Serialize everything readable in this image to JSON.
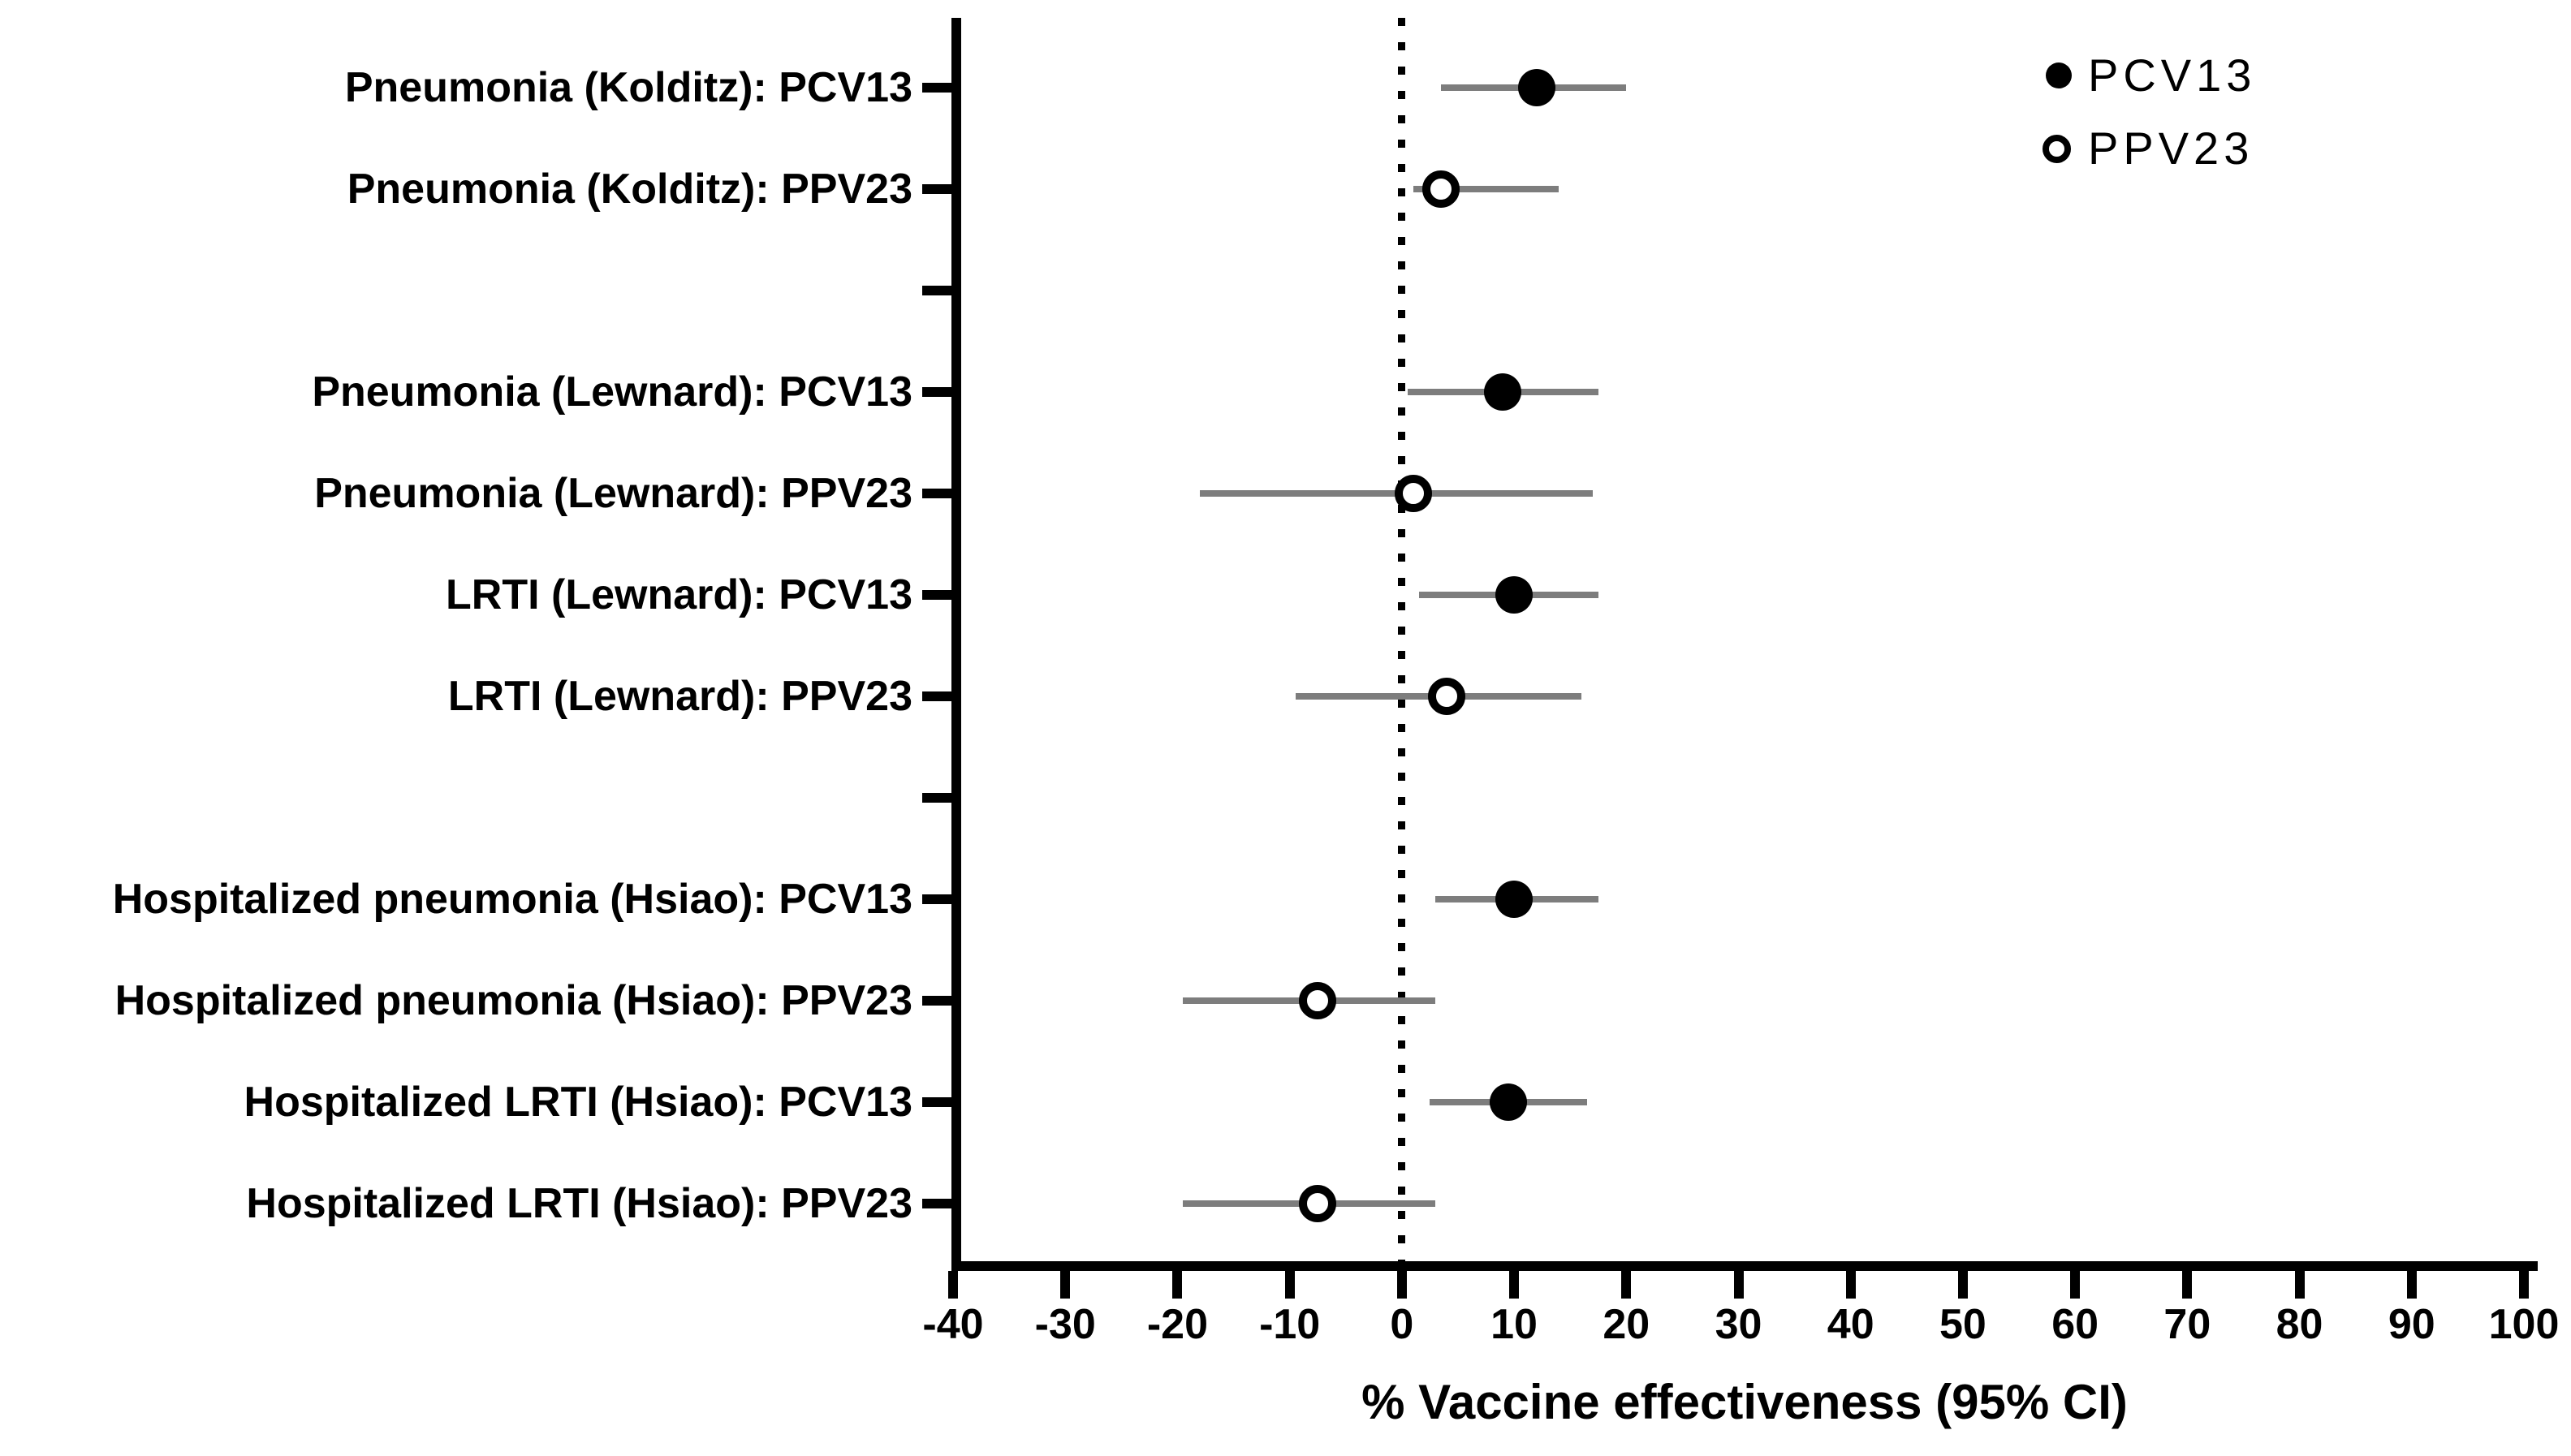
{
  "chart_data": {
    "type": "scatter",
    "subtype": "forest-plot",
    "title": "",
    "xlabel": "% Vaccine effectiveness (95% CI)",
    "ylabel": "",
    "xlim": [
      -40,
      100
    ],
    "xticks": [
      -40,
      -30,
      -20,
      -10,
      0,
      10,
      20,
      30,
      40,
      50,
      60,
      70,
      80,
      90,
      100
    ],
    "zero_reference_line": 0,
    "grid": false,
    "legend_position": "top-right",
    "legend": [
      {
        "label": "PCV13",
        "marker": "filled-circle"
      },
      {
        "label": "PPV23",
        "marker": "open-circle"
      }
    ],
    "rows": [
      {
        "label": "Pneumonia (Kolditz): PCV13",
        "series": "PCV13",
        "estimate": 12,
        "ci_low": 3.5,
        "ci_high": 20,
        "spacer": false
      },
      {
        "label": "Pneumonia (Kolditz): PPV23",
        "series": "PPV23",
        "estimate": 3.5,
        "ci_low": 1,
        "ci_high": 14,
        "spacer": false
      },
      {
        "label": "",
        "series": "",
        "estimate": null,
        "ci_low": null,
        "ci_high": null,
        "spacer": true
      },
      {
        "label": "Pneumonia (Lewnard): PCV13",
        "series": "PCV13",
        "estimate": 9,
        "ci_low": 0.5,
        "ci_high": 17.5,
        "spacer": false
      },
      {
        "label": "Pneumonia (Lewnard): PPV23",
        "series": "PPV23",
        "estimate": 1,
        "ci_low": -18,
        "ci_high": 17,
        "spacer": false
      },
      {
        "label": "LRTI (Lewnard): PCV13",
        "series": "PCV13",
        "estimate": 10,
        "ci_low": 1.5,
        "ci_high": 17.5,
        "spacer": false
      },
      {
        "label": "LRTI (Lewnard): PPV23",
        "series": "PPV23",
        "estimate": 4,
        "ci_low": -9.5,
        "ci_high": 16,
        "spacer": false
      },
      {
        "label": "",
        "series": "",
        "estimate": null,
        "ci_low": null,
        "ci_high": null,
        "spacer": true
      },
      {
        "label": "Hospitalized pneumonia (Hsiao): PCV13",
        "series": "PCV13",
        "estimate": 10,
        "ci_low": 3,
        "ci_high": 17.5,
        "spacer": false
      },
      {
        "label": "Hospitalized pneumonia (Hsiao): PPV23",
        "series": "PPV23",
        "estimate": -7.5,
        "ci_low": -19.5,
        "ci_high": 3,
        "spacer": false
      },
      {
        "label": "Hospitalized LRTI (Hsiao): PCV13",
        "series": "PCV13",
        "estimate": 9.5,
        "ci_low": 2.5,
        "ci_high": 16.5,
        "spacer": false
      },
      {
        "label": "Hospitalized LRTI (Hsiao): PPV23",
        "series": "PPV23",
        "estimate": -7.5,
        "ci_low": -19.5,
        "ci_high": 3,
        "spacer": false
      }
    ]
  },
  "colors": {
    "foreground": "#000000",
    "background": "#ffffff",
    "ci_line": "#7d7d7d",
    "marker_fill": "#000000",
    "marker_open_fill": "#ffffff"
  }
}
